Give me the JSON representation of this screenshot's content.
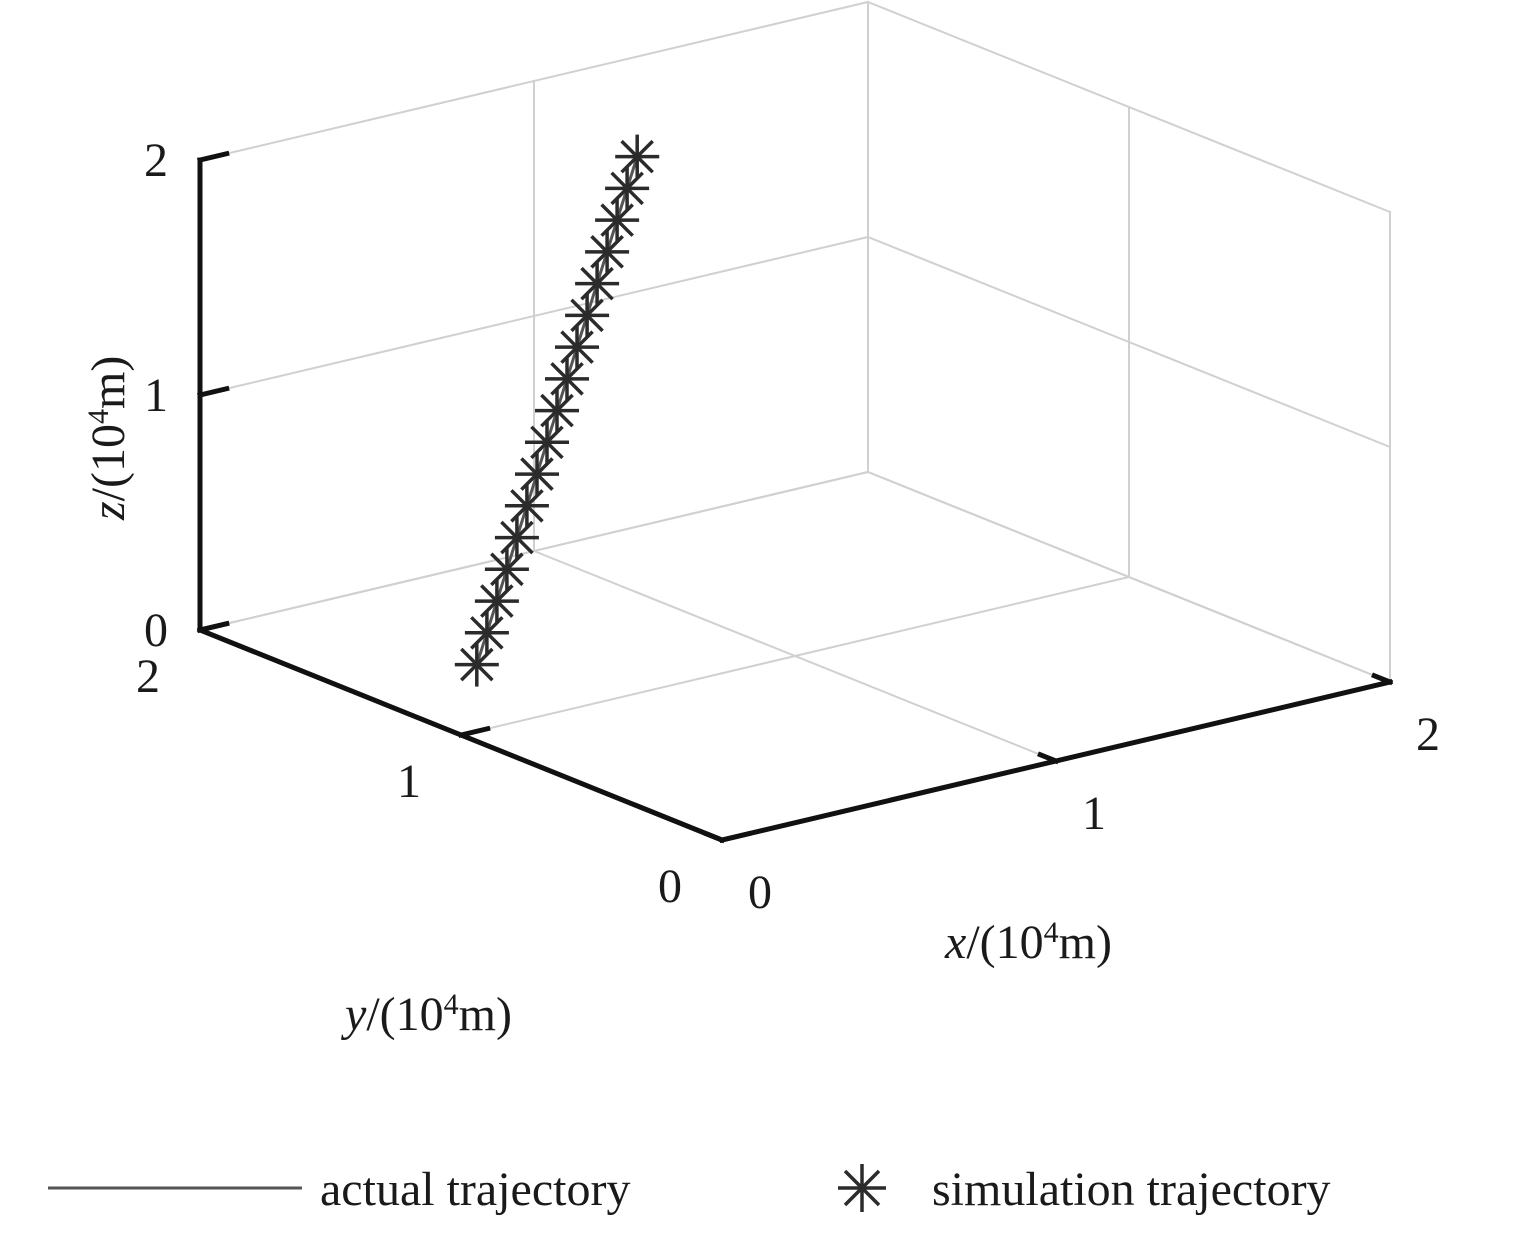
{
  "chart_data": {
    "type": "3d-line",
    "xlabel": {
      "var": "x",
      "base": "/(10",
      "exp": "4",
      "unit": "m)"
    },
    "ylabel": {
      "var": "y",
      "base": "/(10",
      "exp": "4",
      "unit": "m)"
    },
    "zlabel": {
      "var": "z",
      "base": "/(10",
      "exp": "4",
      "unit": "m)"
    },
    "xlim": [
      0,
      2
    ],
    "ylim": [
      0,
      2
    ],
    "zlim": [
      0,
      2
    ],
    "x_ticks": [
      0,
      1,
      2
    ],
    "y_ticks": [
      0,
      1,
      2
    ],
    "z_ticks": [
      0,
      1,
      2
    ],
    "grid": true,
    "legend_position": "bottom",
    "colors": {
      "actual": "#555555",
      "simulation": "#2b2b2b",
      "grid": "#d0d0d0",
      "axis": "#111111"
    },
    "series": [
      {
        "name": "actual trajectory",
        "marker": "none",
        "x": [
          0.36,
          0.39,
          0.42,
          0.45,
          0.48,
          0.51,
          0.54,
          0.57,
          0.6,
          0.63,
          0.66,
          0.69,
          0.72,
          0.75,
          0.78,
          0.81,
          0.84
        ],
        "y": [
          1.4,
          1.4,
          1.4,
          1.4,
          1.4,
          1.4,
          1.4,
          1.4,
          1.4,
          1.4,
          1.4,
          1.4,
          1.4,
          1.4,
          1.4,
          1.4,
          1.4
        ],
        "z": [
          0.0,
          0.125,
          0.25,
          0.375,
          0.5,
          0.625,
          0.75,
          0.875,
          1.0,
          1.125,
          1.25,
          1.375,
          1.5,
          1.625,
          1.75,
          1.875,
          2.0
        ]
      },
      {
        "name": "simulation trajectory",
        "marker": "asterisk",
        "x": [
          0.36,
          0.39,
          0.42,
          0.45,
          0.48,
          0.51,
          0.54,
          0.57,
          0.6,
          0.63,
          0.66,
          0.69,
          0.72,
          0.75,
          0.78,
          0.81,
          0.84
        ],
        "y": [
          1.4,
          1.4,
          1.4,
          1.4,
          1.4,
          1.4,
          1.4,
          1.4,
          1.4,
          1.4,
          1.4,
          1.4,
          1.4,
          1.4,
          1.4,
          1.4,
          1.4
        ],
        "z": [
          0.0,
          0.125,
          0.25,
          0.375,
          0.5,
          0.625,
          0.75,
          0.875,
          1.0,
          1.125,
          1.25,
          1.375,
          1.5,
          1.625,
          1.75,
          1.875,
          2.0
        ]
      }
    ]
  }
}
